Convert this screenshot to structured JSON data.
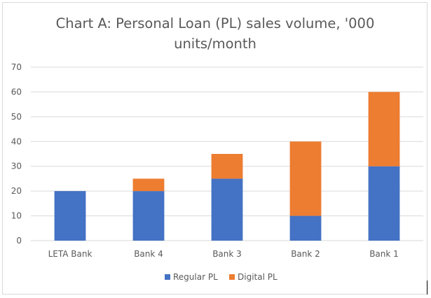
{
  "chart_data": {
    "type": "bar",
    "stacked": true,
    "title_lines": [
      "Chart A: Personal Loan (PL) sales volume, '000",
      "units/month"
    ],
    "categories": [
      "LETA Bank",
      "Bank 4",
      "Bank 3",
      "Bank 2",
      "Bank 1"
    ],
    "series": [
      {
        "name": "Regular PL",
        "color": "#4472c4",
        "values": [
          20,
          20,
          25,
          10,
          30
        ]
      },
      {
        "name": "Digital PL",
        "color": "#ed7d31",
        "values": [
          0,
          5,
          10,
          30,
          30
        ]
      }
    ],
    "ylim": [
      0,
      70
    ],
    "yticks": [
      0,
      10,
      20,
      30,
      40,
      50,
      60,
      70
    ],
    "grid": true,
    "legend_position": "bottom"
  }
}
